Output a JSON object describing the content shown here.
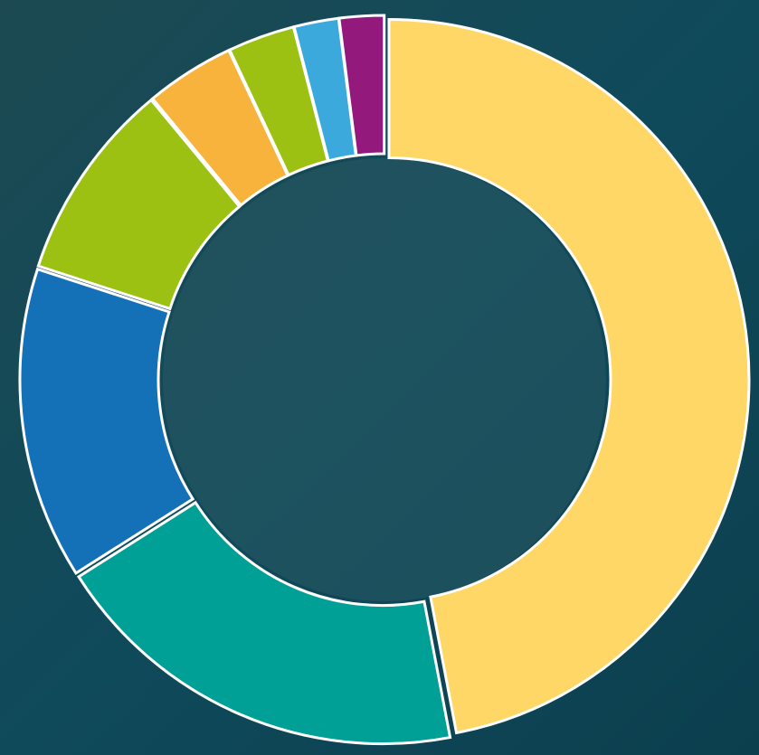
{
  "chart_data": {
    "type": "donut",
    "values": [
      47,
      19,
      14,
      9,
      4,
      3,
      2,
      2
    ],
    "colors": [
      "#fed766",
      "#00a096",
      "#1471b8",
      "#9cc113",
      "#f8b33c",
      "#9cc113",
      "#3ca9dd",
      "#931a7c"
    ]
  }
}
